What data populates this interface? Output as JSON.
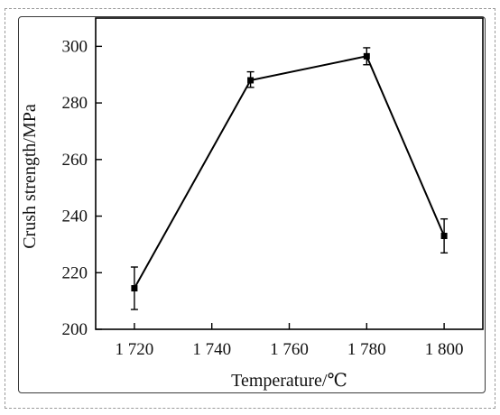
{
  "chart_data": {
    "type": "line",
    "title": "",
    "xlabel": "Temperature/℃",
    "ylabel": "Crush strength/MPa",
    "x": [
      1720,
      1750,
      1780,
      1800
    ],
    "x_tick_labels": [
      "1 720",
      "1 740",
      "1 760",
      "1 780",
      "1 800"
    ],
    "x_ticks": [
      1720,
      1740,
      1760,
      1780,
      1800
    ],
    "xlim": [
      1710,
      1810
    ],
    "y_tick_labels": [
      "200",
      "220",
      "240",
      "260",
      "280",
      "300"
    ],
    "y_ticks": [
      200,
      220,
      240,
      260,
      280,
      300
    ],
    "ylim": [
      200,
      310
    ],
    "series": [
      {
        "values": [
          214.5,
          288,
          296.5,
          233
        ],
        "error_low": [
          207,
          285.5,
          293.5,
          227
        ],
        "error_high": [
          222,
          291,
          299.5,
          239
        ],
        "marker": "square",
        "color": "#000000"
      }
    ],
    "grid": false,
    "legend": "none"
  }
}
